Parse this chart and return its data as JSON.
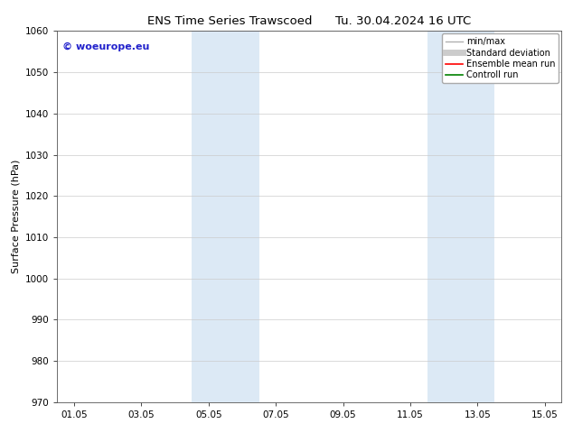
{
  "title": "ENS Time Series Trawscoed      Tu. 30.04.2024 16 UTC",
  "ylabel": "Surface Pressure (hPa)",
  "ylim": [
    970,
    1060
  ],
  "yticks": [
    970,
    980,
    990,
    1000,
    1010,
    1020,
    1030,
    1040,
    1050,
    1060
  ],
  "xtick_labels": [
    "01.05",
    "03.05",
    "05.05",
    "07.05",
    "09.05",
    "11.05",
    "13.05",
    "15.05"
  ],
  "xtick_positions": [
    0,
    2,
    4,
    6,
    8,
    10,
    12,
    14
  ],
  "xlim": [
    -0.5,
    14.5
  ],
  "shaded_bands": [
    {
      "x_start": 3.5,
      "x_end": 5.5
    },
    {
      "x_start": 10.5,
      "x_end": 12.5
    }
  ],
  "shaded_color": "#dce9f5",
  "watermark_text": "© woeurope.eu",
  "watermark_color": "#2222cc",
  "legend_entries": [
    {
      "label": "min/max",
      "color": "#b0b0b0",
      "lw": 1.0,
      "style": "solid"
    },
    {
      "label": "Standard deviation",
      "color": "#cccccc",
      "lw": 5,
      "style": "solid"
    },
    {
      "label": "Ensemble mean run",
      "color": "#ff0000",
      "lw": 1.2,
      "style": "solid"
    },
    {
      "label": "Controll run",
      "color": "#008000",
      "lw": 1.2,
      "style": "solid"
    }
  ],
  "bg_color": "#ffffff",
  "grid_color": "#cccccc",
  "title_fontsize": 9.5,
  "label_fontsize": 8,
  "tick_fontsize": 7.5,
  "legend_fontsize": 7,
  "watermark_fontsize": 8
}
